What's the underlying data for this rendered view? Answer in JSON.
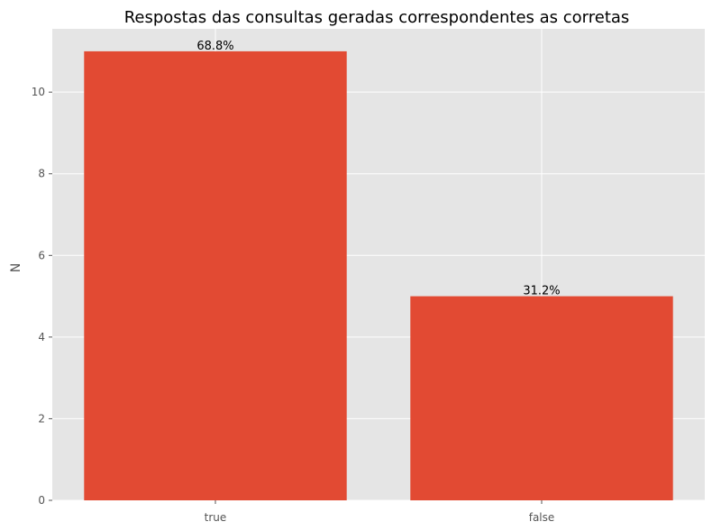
{
  "chart_data": {
    "type": "bar",
    "title": "Respostas das consultas geradas correspondentes as corretas",
    "xlabel": "",
    "ylabel": "N",
    "categories": [
      "true",
      "false"
    ],
    "values": [
      11,
      5
    ],
    "data_labels": [
      "68.8%",
      "31.2%"
    ],
    "ylim": [
      0,
      11.55
    ],
    "yticks": [
      0,
      2,
      4,
      6,
      8,
      10
    ],
    "grid": true,
    "legend": "none",
    "colors": {
      "bar": "#E24A33",
      "plot_background": "#E5E5E5",
      "grid": "#FFFFFF"
    }
  }
}
